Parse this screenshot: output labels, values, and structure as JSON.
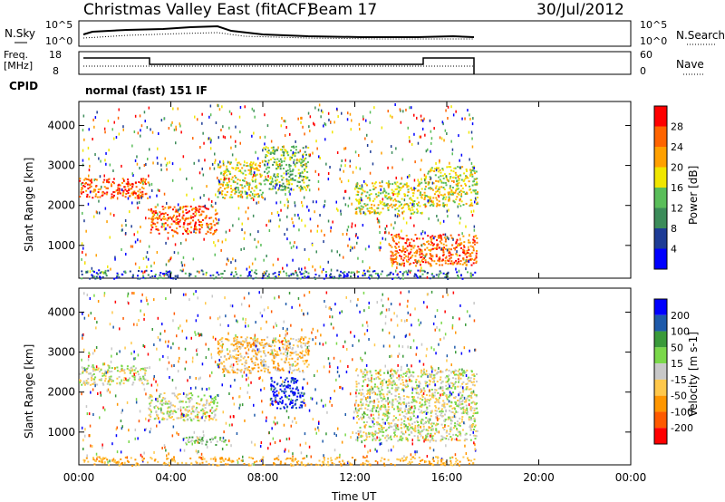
{
  "header": {
    "station": "Christmas Valley East (fitACF)",
    "beam": "Beam 17",
    "date": "30/Jul/2012"
  },
  "strips": {
    "sky_label": "N.Sky",
    "sky_ticks": [
      "10^5",
      "10^0"
    ],
    "search_label": "N.Search",
    "freq_label_1": "Freq.",
    "freq_label_2": "[MHz]",
    "freq_ticks": [
      "18",
      "8"
    ],
    "nave_label": "Nave",
    "nave_ticks": [
      "60",
      "0"
    ],
    "cpid_label": "CPID",
    "cpid_value": "normal (fast) 151 IF"
  },
  "colors": {
    "power_scale": [
      "#0000ff",
      "#1e3c96",
      "#3c8c5a",
      "#5abe5a",
      "#f0e600",
      "#ffa000",
      "#ff6400",
      "#ff0000"
    ],
    "velocity_scale": [
      "#ff0000",
      "#ff5a00",
      "#ff9600",
      "#ffc84b",
      "#c8c8c8",
      "#7ad84a",
      "#3a9a3a",
      "#1e5aaa",
      "#0000ff"
    ]
  },
  "chart_data": [
    {
      "type": "heatmap",
      "title": "Power",
      "xlabel": "Time UT",
      "ylabel": "Slant Range [km]",
      "x_ticks": [
        "00:00",
        "04:00",
        "08:00",
        "12:00",
        "16:00",
        "20:00",
        "00:00"
      ],
      "y_ticks": [
        "1000",
        "2000",
        "3000",
        "4000"
      ],
      "xlim": [
        0,
        24
      ],
      "ylim": [
        180,
        4600
      ],
      "colorbar_label": "Power [dB]",
      "colorbar_ticks": [
        "28",
        "24",
        "20",
        "16",
        "12",
        "8",
        "4"
      ],
      "data_end_hour": 17.3,
      "echo_bands": [
        {
          "x": [
            0.0,
            3.0
          ],
          "range": [
            2200,
            2700
          ],
          "level": 6
        },
        {
          "x": [
            3.0,
            6.0
          ],
          "range": [
            1300,
            2000
          ],
          "level": 6
        },
        {
          "x": [
            6.0,
            8.0
          ],
          "range": [
            2200,
            3100
          ],
          "level": 4
        },
        {
          "x": [
            8.0,
            10.0
          ],
          "range": [
            2400,
            3500
          ],
          "level": 3
        },
        {
          "x": [
            12.0,
            15.0
          ],
          "range": [
            1800,
            2600
          ],
          "level": 4
        },
        {
          "x": [
            15.0,
            17.3
          ],
          "range": [
            2000,
            3000
          ],
          "level": 4
        },
        {
          "x": [
            13.5,
            17.3
          ],
          "range": [
            500,
            1300
          ],
          "level": 6
        }
      ]
    },
    {
      "type": "heatmap",
      "title": "Velocity",
      "xlabel": "Time UT",
      "ylabel": "Slant Range [km]",
      "x_ticks": [
        "00:00",
        "04:00",
        "08:00",
        "12:00",
        "16:00",
        "20:00",
        "00:00"
      ],
      "y_ticks": [
        "1000",
        "2000",
        "3000",
        "4000"
      ],
      "xlim": [
        0,
        24
      ],
      "ylim": [
        180,
        4600
      ],
      "colorbar_label": "Velocity [m s-1]",
      "colorbar_ticks": [
        "200",
        "100",
        "50",
        "15",
        "-15",
        "-50",
        "-100",
        "-200"
      ],
      "data_end_hour": 17.3,
      "echo_bands": [
        {
          "x": [
            0.0,
            3.0
          ],
          "range": [
            2200,
            2700
          ],
          "level": 4
        },
        {
          "x": [
            3.0,
            6.0
          ],
          "range": [
            1300,
            2000
          ],
          "level": 4
        },
        {
          "x": [
            8.3,
            9.8
          ],
          "range": [
            1600,
            2400
          ],
          "level": 8
        },
        {
          "x": [
            6.0,
            10.0
          ],
          "range": [
            2500,
            3400
          ],
          "level": 3
        },
        {
          "x": [
            12.0,
            17.3
          ],
          "range": [
            800,
            2600
          ],
          "level": 4
        },
        {
          "x": [
            4.5,
            6.5
          ],
          "range": [
            700,
            900
          ],
          "level": 5
        }
      ]
    }
  ]
}
